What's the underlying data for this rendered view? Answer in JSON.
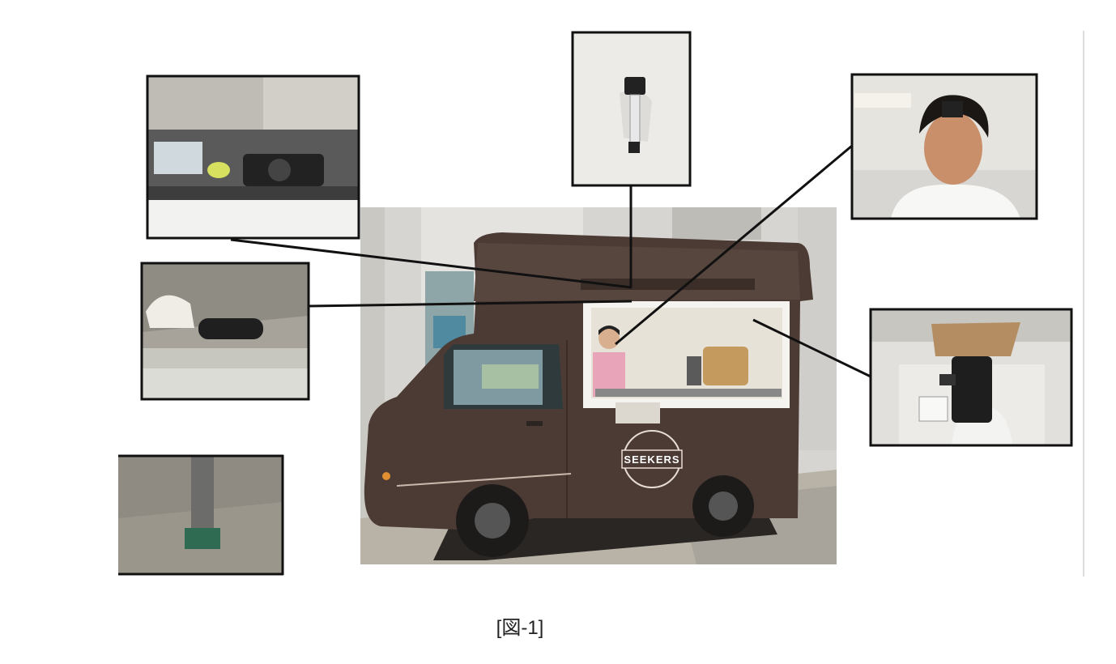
{
  "caption": "[図-1]",
  "photo": {
    "logo": "SEEKERS"
  }
}
